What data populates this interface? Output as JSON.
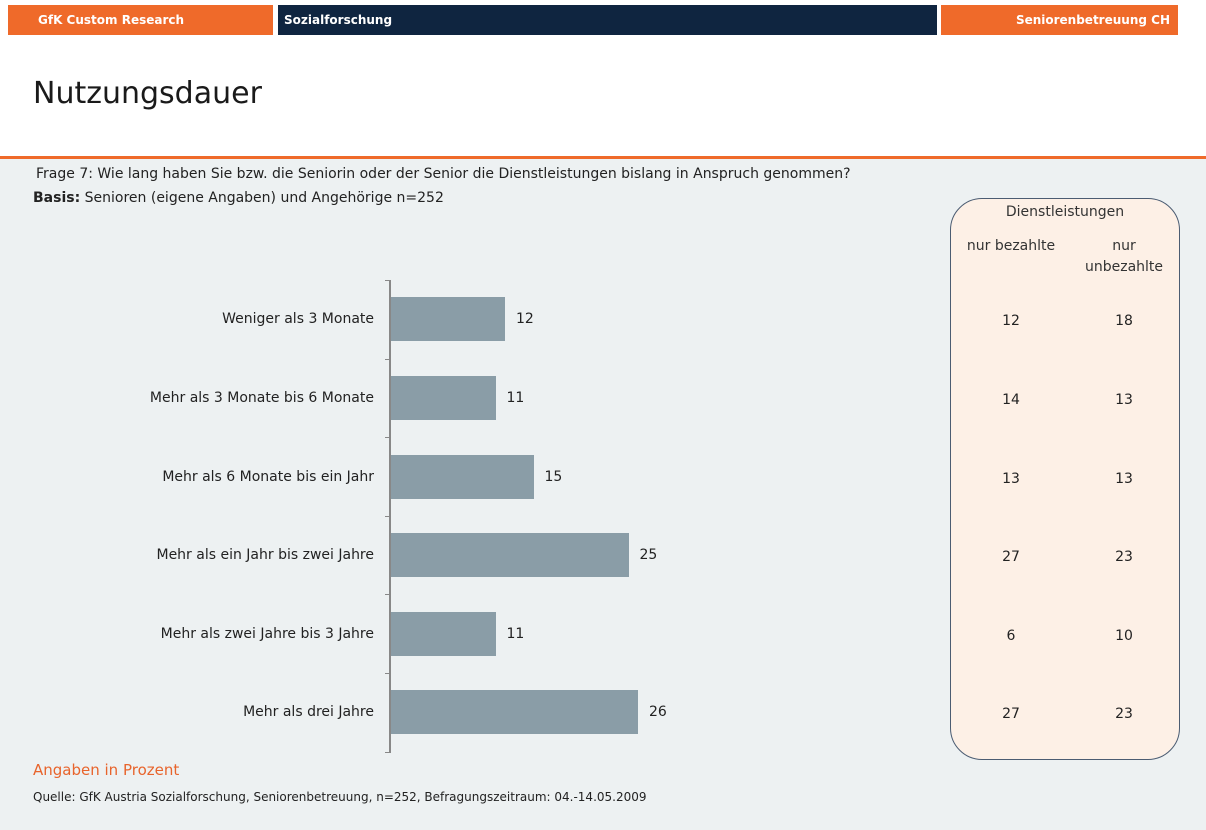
{
  "header": {
    "left": "GfK Custom Research",
    "center": "Sozialforschung",
    "right": "Seniorenbetreuung CH"
  },
  "page_title": "Nutzungsdauer",
  "question": "Frage 7: Wie lang haben Sie bzw. die Seniorin oder der Senior die Dienstleistungen bislang in Anspruch genommen?",
  "basis_label": "Basis:",
  "basis_text": "Senioren (eigene Angaben) und Angehörige n=252",
  "chart_data": {
    "type": "bar",
    "orientation": "horizontal",
    "categories": [
      "Weniger als 3 Monate",
      "Mehr als 3 Monate bis 6 Monate",
      "Mehr als 6 Monate bis ein Jahr",
      "Mehr als ein Jahr bis zwei Jahre",
      "Mehr als zwei Jahre bis 3 Jahre",
      "Mehr als drei Jahre"
    ],
    "values": [
      12,
      11,
      15,
      25,
      11,
      26
    ],
    "color": "#8a9da7"
  },
  "side_table": {
    "title": "Dienstleistungen",
    "columns": [
      "nur bezahlte",
      "nur unbezahlte"
    ],
    "rows": [
      [
        12,
        18
      ],
      [
        14,
        13
      ],
      [
        13,
        13
      ],
      [
        27,
        23
      ],
      [
        6,
        10
      ],
      [
        27,
        23
      ]
    ]
  },
  "note": "Angaben in Prozent",
  "source": "Quelle: GfK Austria Sozialforschung, Seniorenbetreuung, n=252, Befragungszeitraum: 04.-14.05.2009"
}
